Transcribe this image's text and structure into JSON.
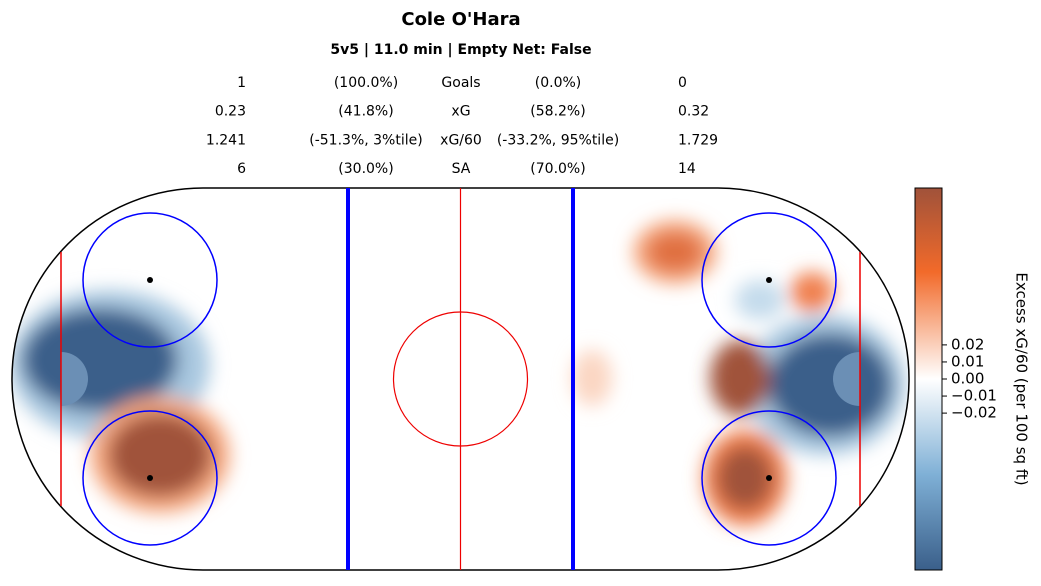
{
  "title": "Cole O'Hara",
  "subtitle": "5v5 | 11.0 min | Empty Net: False",
  "stats": {
    "rows": [
      [
        "1",
        "(100.0%)",
        "Goals",
        "(0.0%)",
        "0"
      ],
      [
        "0.23",
        "(41.8%)",
        "xG",
        "(58.2%)",
        "0.32"
      ],
      [
        "1.241",
        "(-51.3%, 3%tile)",
        "xG/60",
        "(-33.2%, 95%tile)",
        "1.729"
      ],
      [
        "6",
        "(30.0%)",
        "SA",
        "(70.0%)",
        "14"
      ]
    ]
  },
  "chart_data": {
    "type": "heatmap",
    "colorbar_label": "Excess xG/60 (per 100 sq ft)",
    "zlim": [
      -0.112,
      0.112
    ],
    "zticks": [
      0.02,
      0.01,
      {
        "value": 0,
        "label": "0.00"
      },
      {
        "value": -0.01,
        "label": "−0.01"
      },
      {
        "value": -0.02,
        "label": "−0.02"
      }
    ]
  }
}
